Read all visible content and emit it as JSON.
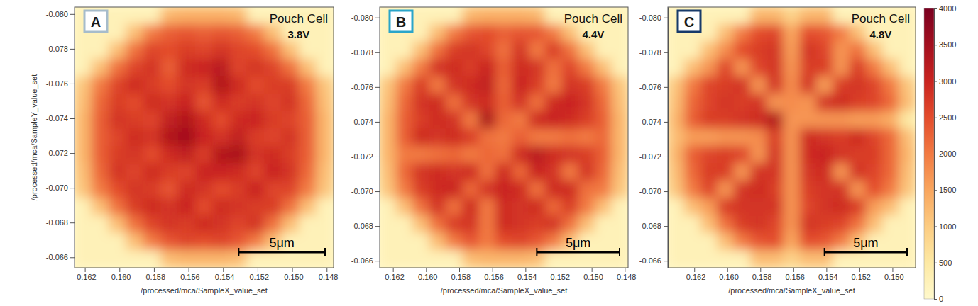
{
  "chart_data": [
    {
      "type": "heatmap",
      "label": "A",
      "title": "Pouch Cell",
      "subtitle": "3.8V",
      "x_label": "/processed/mca/SampleX_value_set",
      "y_label": "/processed/mca/SampleY_value_set",
      "xlim": [
        -0.1626,
        -0.1476
      ],
      "ylim": [
        -0.0804,
        -0.0654
      ],
      "xticks": [
        -0.162,
        {
          "value": -0.16,
          "label": "-0.160"
        },
        -0.158,
        -0.156,
        -0.154,
        -0.152,
        {
          "value": -0.15,
          "label": "-0.150"
        },
        -0.148
      ],
      "yticks": [
        {
          "value": -0.08,
          "label": "-0.080"
        },
        -0.078,
        -0.076,
        -0.074,
        -0.072,
        {
          "value": -0.07,
          "label": "-0.070"
        },
        -0.068,
        -0.066
      ],
      "x": [
        -0.1621,
        -0.1611,
        -0.1601,
        -0.1591,
        -0.1581,
        -0.1571,
        -0.1561,
        -0.1551,
        -0.1541,
        -0.1531,
        -0.1521,
        -0.1511,
        -0.1501,
        -0.1491,
        -0.1481
      ],
      "y": [
        -0.0799,
        -0.0789,
        -0.0779,
        -0.0769,
        -0.0759,
        -0.0749,
        -0.0739,
        -0.0729,
        -0.0719,
        -0.0709,
        -0.0699,
        -0.0689,
        -0.0679,
        -0.0669,
        -0.0659
      ],
      "cells": [
        [
          250,
          250,
          250,
          250,
          250,
          1300,
          1400,
          1400,
          1400,
          1300,
          250,
          250,
          250,
          250,
          250
        ],
        [
          250,
          250,
          250,
          1200,
          2000,
          2300,
          2400,
          2300,
          2400,
          2300,
          2000,
          1200,
          250,
          250,
          250
        ],
        [
          250,
          250,
          1200,
          2100,
          2600,
          2500,
          2700,
          2600,
          2800,
          2600,
          2500,
          2100,
          1200,
          250,
          250
        ],
        [
          250,
          1200,
          2100,
          2600,
          2800,
          2300,
          2900,
          3000,
          3200,
          2600,
          2800,
          2600,
          2100,
          1200,
          250
        ],
        [
          1100,
          2000,
          2600,
          2900,
          2700,
          2500,
          2800,
          2700,
          3300,
          2900,
          2500,
          2700,
          2700,
          2000,
          1100
        ],
        [
          1200,
          2200,
          2700,
          2500,
          2900,
          2800,
          3000,
          2400,
          2900,
          2700,
          2800,
          2600,
          2800,
          2200,
          1200
        ],
        [
          1300,
          2300,
          2800,
          2700,
          2600,
          3100,
          3300,
          2900,
          2500,
          2900,
          3000,
          2700,
          2600,
          2300,
          1300
        ],
        [
          1300,
          2300,
          2600,
          2900,
          2800,
          3300,
          3500,
          3000,
          2800,
          3100,
          2700,
          2600,
          2800,
          2300,
          1300
        ],
        [
          1300,
          2300,
          2700,
          2800,
          2500,
          2900,
          3100,
          2700,
          3300,
          3400,
          2800,
          2900,
          2700,
          2300,
          1300
        ],
        [
          1200,
          2200,
          2800,
          2600,
          2900,
          2700,
          2600,
          3000,
          3000,
          2900,
          2600,
          3000,
          2800,
          2200,
          1200
        ],
        [
          1100,
          2000,
          2500,
          2800,
          2700,
          2400,
          2900,
          2800,
          2500,
          2700,
          3000,
          2600,
          2600,
          2000,
          1100
        ],
        [
          250,
          1200,
          2100,
          2700,
          2900,
          2800,
          3000,
          2500,
          2900,
          2800,
          2700,
          2700,
          2100,
          1200,
          250
        ],
        [
          250,
          250,
          1200,
          2100,
          2600,
          2800,
          2700,
          2900,
          2800,
          2600,
          2800,
          2100,
          1200,
          250,
          250
        ],
        [
          250,
          250,
          250,
          1200,
          2000,
          2400,
          2600,
          2500,
          2600,
          2400,
          2000,
          1200,
          250,
          250,
          250
        ],
        [
          250,
          250,
          250,
          250,
          250,
          1200,
          1300,
          1300,
          1300,
          1200,
          250,
          250,
          250,
          250,
          250
        ]
      ],
      "scale_bar": {
        "label": "5μm",
        "length": 0.005
      }
    },
    {
      "type": "heatmap",
      "label": "B",
      "title": "Pouch Cell",
      "subtitle": "4.4V",
      "x_label": "/processed/mca/SampleX_value_set",
      "xlim": [
        -0.1628,
        -0.1478
      ],
      "ylim": [
        -0.0806,
        -0.0656
      ],
      "xticks": [
        -0.162,
        {
          "value": -0.16,
          "label": "-0.160"
        },
        -0.158,
        -0.156,
        -0.154,
        -0.152,
        {
          "value": -0.15,
          "label": "-0.150"
        },
        -0.148
      ],
      "yticks": [
        {
          "value": -0.08,
          "label": "-0.080"
        },
        -0.078,
        -0.076,
        -0.074,
        -0.072,
        {
          "value": -0.07,
          "label": "-0.070"
        },
        -0.068,
        -0.066
      ],
      "x": [
        -0.1623,
        -0.1613,
        -0.1603,
        -0.1593,
        -0.1583,
        -0.1573,
        -0.1563,
        -0.1553,
        -0.1543,
        -0.1533,
        -0.1523,
        -0.1513,
        -0.1503,
        -0.1493,
        -0.1483
      ],
      "y": [
        -0.0801,
        -0.0791,
        -0.0781,
        -0.0771,
        -0.0761,
        -0.0751,
        -0.0741,
        -0.0731,
        -0.0721,
        -0.0711,
        -0.0701,
        -0.0691,
        -0.0681,
        -0.0671,
        -0.0661
      ],
      "cells": [
        [
          250,
          250,
          250,
          250,
          250,
          1300,
          1400,
          1400,
          1400,
          1300,
          250,
          250,
          250,
          250,
          250
        ],
        [
          250,
          250,
          250,
          1200,
          2000,
          2400,
          2500,
          2300,
          2400,
          2400,
          2000,
          1200,
          250,
          250,
          250
        ],
        [
          250,
          250,
          1200,
          2100,
          2700,
          2800,
          2600,
          2100,
          2800,
          2000,
          2700,
          2100,
          1200,
          250,
          250
        ],
        [
          250,
          1200,
          2000,
          2800,
          2900,
          2700,
          3000,
          2300,
          2900,
          2800,
          2100,
          2600,
          2000,
          1200,
          250
        ],
        [
          1100,
          2000,
          2700,
          2000,
          2800,
          2900,
          3100,
          2200,
          3000,
          2700,
          2000,
          2800,
          2700,
          2000,
          1100
        ],
        [
          1200,
          2200,
          2800,
          2900,
          2100,
          2800,
          2900,
          2300,
          2800,
          2100,
          2900,
          3000,
          2800,
          2200,
          1200
        ],
        [
          1300,
          2300,
          2700,
          2900,
          2800,
          2000,
          3400,
          2200,
          2000,
          2900,
          3000,
          2900,
          2700,
          2300,
          1300
        ],
        [
          1300,
          2300,
          2900,
          2800,
          2900,
          2700,
          2100,
          2000,
          2300,
          2000,
          2000,
          2100,
          2000,
          2200,
          1300
        ],
        [
          1300,
          2000,
          2000,
          2100,
          2200,
          2000,
          2200,
          2100,
          2900,
          3200,
          2900,
          2800,
          2700,
          2300,
          1300
        ],
        [
          1200,
          2200,
          2800,
          2900,
          2800,
          2900,
          2100,
          2900,
          2200,
          3000,
          2800,
          2000,
          2800,
          2200,
          1200
        ],
        [
          1100,
          2000,
          2700,
          2900,
          3000,
          2200,
          2800,
          3000,
          2900,
          2100,
          2900,
          2900,
          2100,
          2000,
          1100
        ],
        [
          250,
          1200,
          2100,
          2800,
          2100,
          2900,
          2000,
          2900,
          2800,
          2900,
          2200,
          2700,
          2000,
          1200,
          250
        ],
        [
          250,
          250,
          1200,
          2100,
          2700,
          2800,
          2000,
          2900,
          2800,
          2700,
          2800,
          2100,
          1200,
          250,
          250
        ],
        [
          250,
          250,
          250,
          1200,
          2000,
          2400,
          2000,
          2500,
          2600,
          2400,
          2000,
          1200,
          250,
          250,
          250
        ],
        [
          250,
          250,
          250,
          250,
          250,
          1200,
          1300,
          1300,
          1300,
          1200,
          250,
          250,
          250,
          250,
          250
        ]
      ],
      "scale_bar": {
        "label": "5μm",
        "length": 0.005
      }
    },
    {
      "type": "heatmap",
      "label": "C",
      "title": "Pouch Cell",
      "subtitle": "4.8V",
      "x_label": "/processed/mca/SampleX_value_set",
      "xlim": [
        -0.1636,
        -0.1486
      ],
      "ylim": [
        -0.0806,
        -0.0656
      ],
      "xticks": [
        -0.162,
        {
          "value": -0.16,
          "label": "-0.160"
        },
        -0.158,
        -0.156,
        -0.154,
        -0.152,
        {
          "value": -0.15,
          "label": "-0.150"
        }
      ],
      "yticks": [
        {
          "value": -0.08,
          "label": "-0.080"
        },
        -0.078,
        -0.076,
        -0.074,
        -0.072,
        {
          "value": -0.07,
          "label": "-0.070"
        },
        -0.068,
        -0.066
      ],
      "x": [
        -0.1631,
        -0.1621,
        -0.1611,
        -0.1601,
        -0.1591,
        -0.1581,
        -0.1571,
        -0.1561,
        -0.1551,
        -0.1541,
        -0.1531,
        -0.1521,
        -0.1511,
        -0.1501,
        -0.1491
      ],
      "y": [
        -0.0801,
        -0.0791,
        -0.0781,
        -0.0771,
        -0.0761,
        -0.0751,
        -0.0741,
        -0.0731,
        -0.0721,
        -0.0711,
        -0.0701,
        -0.0691,
        -0.0681,
        -0.0671,
        -0.0661
      ],
      "cells": [
        [
          250,
          250,
          250,
          250,
          250,
          1300,
          1300,
          900,
          1300,
          1300,
          250,
          250,
          250,
          250,
          250
        ],
        [
          250,
          250,
          250,
          1200,
          2000,
          2500,
          2600,
          1500,
          2500,
          2400,
          2000,
          1200,
          250,
          250,
          250
        ],
        [
          250,
          250,
          1200,
          1800,
          2500,
          2700,
          2800,
          1600,
          2800,
          2600,
          1700,
          2100,
          1200,
          250,
          250
        ],
        [
          250,
          1200,
          1700,
          2600,
          1700,
          2600,
          2800,
          1700,
          2700,
          2700,
          1700,
          2700,
          2000,
          1200,
          250
        ],
        [
          1100,
          2000,
          2600,
          2700,
          2800,
          1700,
          2800,
          1800,
          2800,
          1600,
          2700,
          2800,
          2600,
          2000,
          1100
        ],
        [
          1200,
          2200,
          2600,
          2800,
          2700,
          2800,
          1700,
          1800,
          1700,
          2800,
          2900,
          2700,
          2600,
          2200,
          1200
        ],
        [
          1300,
          2300,
          2700,
          2700,
          2800,
          2900,
          3300,
          1700,
          1700,
          1700,
          1700,
          1600,
          1600,
          1400,
          500
        ],
        [
          1200,
          1600,
          1600,
          1700,
          1700,
          1800,
          2700,
          1700,
          2900,
          2800,
          2700,
          2900,
          2600,
          2200,
          1200
        ],
        [
          1300,
          2300,
          2600,
          2700,
          2600,
          1700,
          2800,
          1700,
          2900,
          3000,
          2800,
          2700,
          2700,
          2200,
          1300
        ],
        [
          1200,
          2200,
          2700,
          2700,
          1700,
          2800,
          2800,
          1700,
          2800,
          2900,
          1700,
          2800,
          2600,
          2200,
          1200
        ],
        [
          1100,
          2000,
          2600,
          1700,
          2800,
          2900,
          2700,
          1700,
          2700,
          2800,
          2800,
          1700,
          2500,
          2000,
          1100
        ],
        [
          250,
          1200,
          1600,
          2700,
          2800,
          2800,
          2800,
          1700,
          2600,
          2800,
          2900,
          2700,
          1600,
          1200,
          250
        ],
        [
          250,
          250,
          1200,
          2100,
          2700,
          2800,
          2600,
          1700,
          2800,
          2700,
          2600,
          2100,
          1200,
          250,
          250
        ],
        [
          250,
          250,
          250,
          1200,
          2000,
          2400,
          2500,
          1500,
          2500,
          2400,
          2000,
          1200,
          250,
          250,
          250
        ],
        [
          250,
          250,
          250,
          250,
          250,
          1200,
          1200,
          900,
          1200,
          1200,
          250,
          250,
          250,
          250,
          250
        ]
      ],
      "scale_bar": {
        "label": "5μm",
        "length": 0.005
      },
      "color_range": [
        0,
        4000
      ],
      "color_ticks": [
        0,
        500,
        1000,
        1500,
        2000,
        2500,
        3000,
        3500,
        4000
      ]
    }
  ]
}
